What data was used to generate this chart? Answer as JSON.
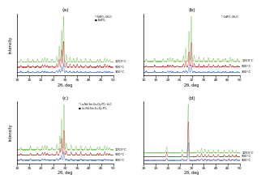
{
  "panels": [
    "(a)",
    "(b)",
    "(c)",
    "(d)"
  ],
  "xlabel": "2θ, deg",
  "ylabel": "Intensity",
  "xrange": [
    10,
    50
  ],
  "legends": {
    "a": [
      "* NdPO₄·4H₂O",
      "■ NdPO₄"
    ],
    "b": [
      "* GdPO₄·4H₂O"
    ],
    "c": [
      "* La-Nd-Sm-Eu-Dy-PO₄·H₂O",
      "■ La-Nd-Sm-Eu-Dy-PO₄"
    ],
    "d": []
  },
  "temp_labels": {
    "a": [
      "1200°C",
      "900°C",
      "300°C"
    ],
    "b": [
      "1200°C",
      "900°C",
      "300°C"
    ],
    "c": [
      "1200°C",
      "900°C",
      "300°C"
    ],
    "d": [
      "1200°C",
      "900°C",
      "300°C"
    ]
  },
  "line_colors": {
    "top": "#7dc65e",
    "mid": "#cc3333",
    "bot": "#5577cc"
  },
  "bg_color": "#ffffff"
}
